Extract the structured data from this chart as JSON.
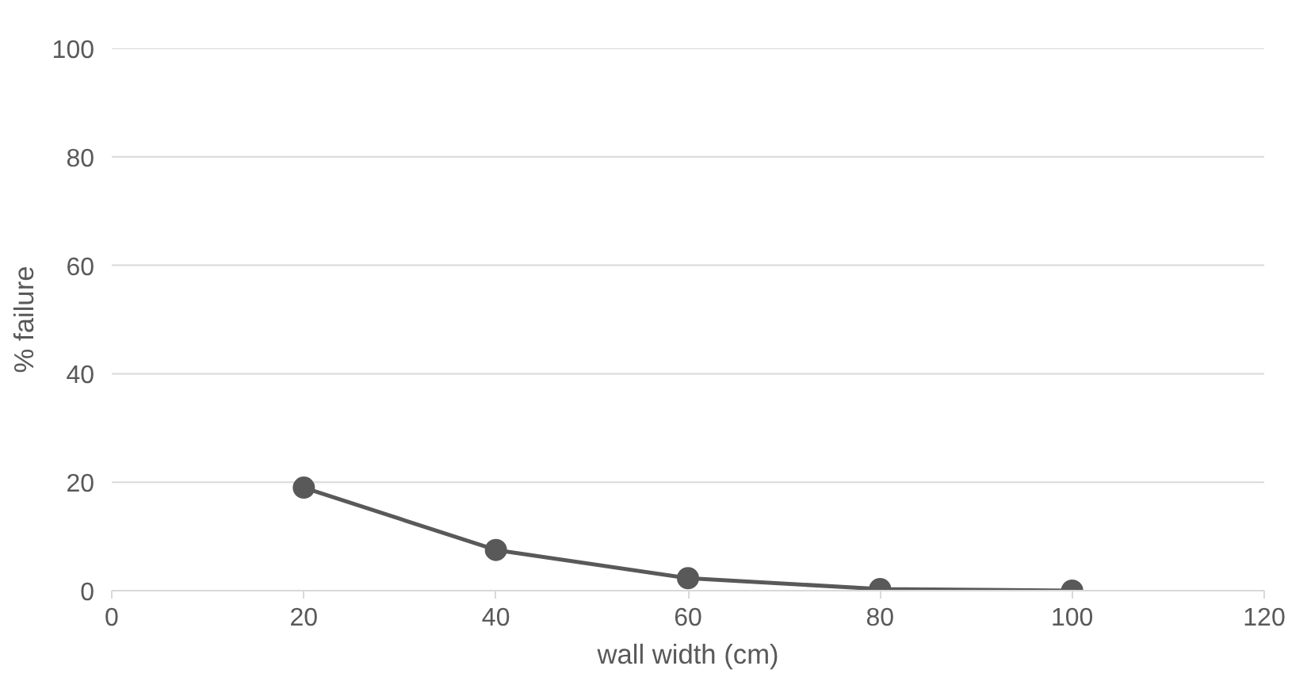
{
  "chart_data": {
    "type": "line",
    "xlabel": "wall width (cm)",
    "ylabel": "% failure",
    "x": [
      20,
      40,
      60,
      80,
      100
    ],
    "series": [
      {
        "color": "#595959",
        "values": [
          19,
          7.5,
          2.3,
          0.3,
          0
        ]
      }
    ],
    "xlim": [
      0,
      120
    ],
    "xticks": [
      0,
      20,
      40,
      60,
      80,
      100,
      120
    ],
    "ylim": [
      0,
      100
    ],
    "yticks": [
      0,
      20,
      40,
      60,
      80,
      100
    ],
    "grid": "y",
    "marker": "circle",
    "line_style": "solid"
  }
}
